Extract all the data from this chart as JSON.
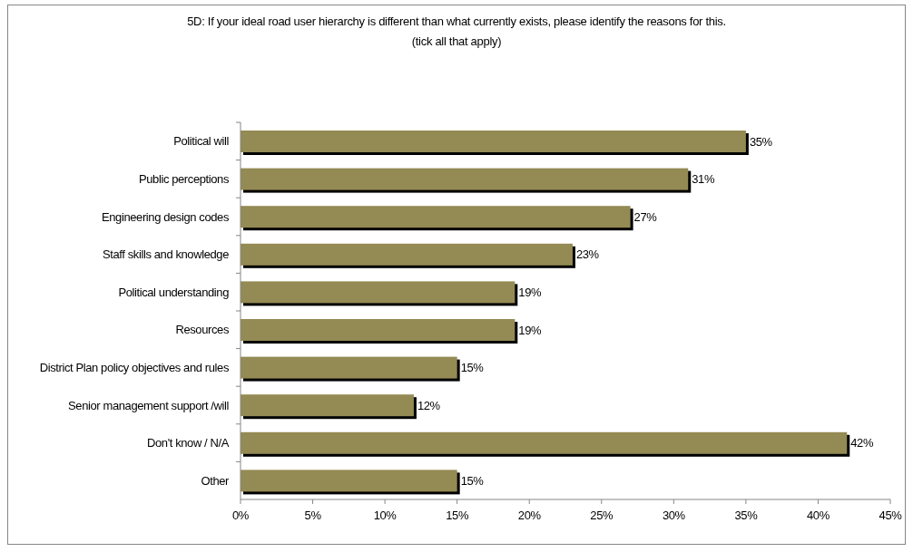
{
  "chart_data": {
    "type": "bar",
    "orientation": "horizontal",
    "title": "5D: If your ideal road user hierarchy is different than what currently exists, please identify the reasons for this.",
    "subtitle": "(tick all that apply)",
    "categories": [
      "Political will",
      "Public perceptions",
      "Engineering design codes",
      "Staff skills and knowledge",
      "Political understanding",
      "Resources",
      "District Plan policy objectives and rules",
      "Senior management support /will",
      "Don't know / N/A",
      "Other"
    ],
    "values": [
      35,
      31,
      27,
      23,
      19,
      19,
      15,
      12,
      42,
      15
    ],
    "color": "#948a54",
    "value_labels": [
      "35%",
      "31%",
      "27%",
      "23%",
      "19%",
      "19%",
      "15%",
      "12%",
      "42%",
      "15%"
    ],
    "xlim": [
      0,
      45
    ],
    "xticks": [
      {
        "value": 0,
        "label": "0%"
      },
      {
        "value": 5,
        "label": "5%"
      },
      {
        "value": 10,
        "label": "10%"
      },
      {
        "value": 15,
        "label": "15%"
      },
      {
        "value": 20,
        "label": "20%"
      },
      {
        "value": 25,
        "label": "25%"
      },
      {
        "value": 30,
        "label": "30%"
      },
      {
        "value": 35,
        "label": "35%"
      },
      {
        "value": 40,
        "label": "40%"
      },
      {
        "value": 45,
        "label": "45%"
      }
    ]
  }
}
